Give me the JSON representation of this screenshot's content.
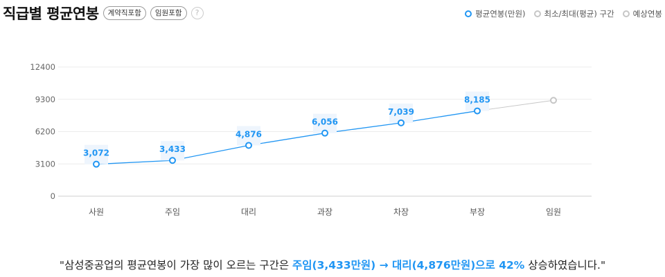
{
  "header": {
    "title": "직급별 평균연봉",
    "tags": [
      "계약직포함",
      "임원포함"
    ],
    "help_glyph": "?"
  },
  "legend": [
    {
      "label": "평균연봉(만원)",
      "color": "#2196f3"
    },
    {
      "label": "최소/최대(평균) 구간",
      "color": "#c6c6c6"
    },
    {
      "label": "예상연봉",
      "color": "#c6c6c6"
    }
  ],
  "chart_data": {
    "type": "line",
    "categories": [
      "사원",
      "주임",
      "대리",
      "과장",
      "차장",
      "부장",
      "임원"
    ],
    "yticks": [
      0,
      3100,
      6200,
      9300,
      12400
    ],
    "ylim": [
      0,
      12400
    ],
    "series": [
      {
        "name": "평균연봉(만원)",
        "values": [
          3072,
          3433,
          4876,
          6056,
          7039,
          8185,
          null
        ],
        "labels": [
          "3,072",
          "3,433",
          "4,876",
          "6,056",
          "7,039",
          "8,185",
          ""
        ],
        "color": "#2196f3"
      },
      {
        "name": "예상연봉",
        "values": [
          null,
          null,
          null,
          null,
          null,
          8185,
          9200
        ],
        "color": "#c6c6c6"
      }
    ],
    "grid": true
  },
  "summary": {
    "prefix": "\"삼성중공업의 평균연봉이 가장 많이 오르는 구간은 ",
    "highlight1": "주임(3,433만원) → 대리(4,876만원)으로 42%",
    "suffix": " 상승하였습니다.\""
  }
}
